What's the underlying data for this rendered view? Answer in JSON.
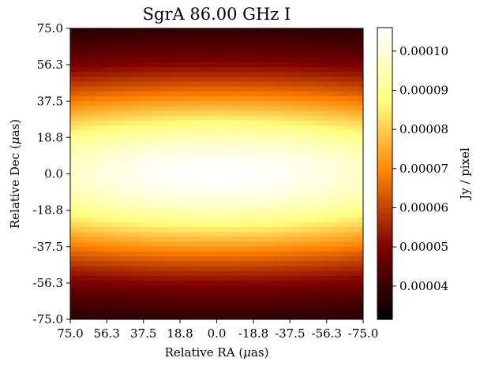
{
  "chart_data": {
    "type": "heatmap",
    "title": "SgrA 86.00 GHz I",
    "xlabel_prefix": "Relative RA (",
    "xlabel_unit": "μ",
    "xlabel_suffix": "as)",
    "ylabel_prefix": "Relative Dec (",
    "ylabel_unit": "μ",
    "ylabel_suffix": "as)",
    "xlim": [
      75.0,
      -75.0
    ],
    "ylim": [
      -75.0,
      75.0
    ],
    "xticks": [
      75.0,
      56.3,
      37.5,
      18.8,
      0.0,
      -18.8,
      -37.5,
      -56.3,
      -75.0
    ],
    "xtick_labels": [
      "75.0",
      "56.3",
      "37.5",
      "18.8",
      "0.0",
      "-18.8",
      "-37.5",
      "-56.3",
      "-75.0"
    ],
    "yticks": [
      75.0,
      56.3,
      37.5,
      18.8,
      0.0,
      -18.8,
      -37.5,
      -56.3,
      -75.0
    ],
    "ytick_labels": [
      "75.0",
      "56.3",
      "37.5",
      "18.8",
      "0.0",
      "-18.8",
      "-37.5",
      "-56.3",
      "-75.0"
    ],
    "colormap": "afmhot",
    "colorbar": {
      "label": "Jy / pixel",
      "range": [
        3.15e-05,
        0.000106
      ],
      "ticks": [
        4e-05,
        5e-05,
        6e-05,
        7e-05,
        8e-05,
        9e-05,
        0.0001
      ],
      "tick_labels": [
        "0.00004",
        "0.00005",
        "0.00006",
        "0.00007",
        "0.00008",
        "0.00009",
        "0.00010"
      ]
    },
    "source": {
      "shape": "elliptical gaussian centered at origin",
      "center": [
        0.0,
        0.0
      ],
      "peak_jy_per_pixel": 0.000106,
      "floor_jy_per_pixel": 3.15e-05,
      "sigma_ra_uas": 155,
      "sigma_dec_uas": 34.5
    },
    "grid": false
  }
}
